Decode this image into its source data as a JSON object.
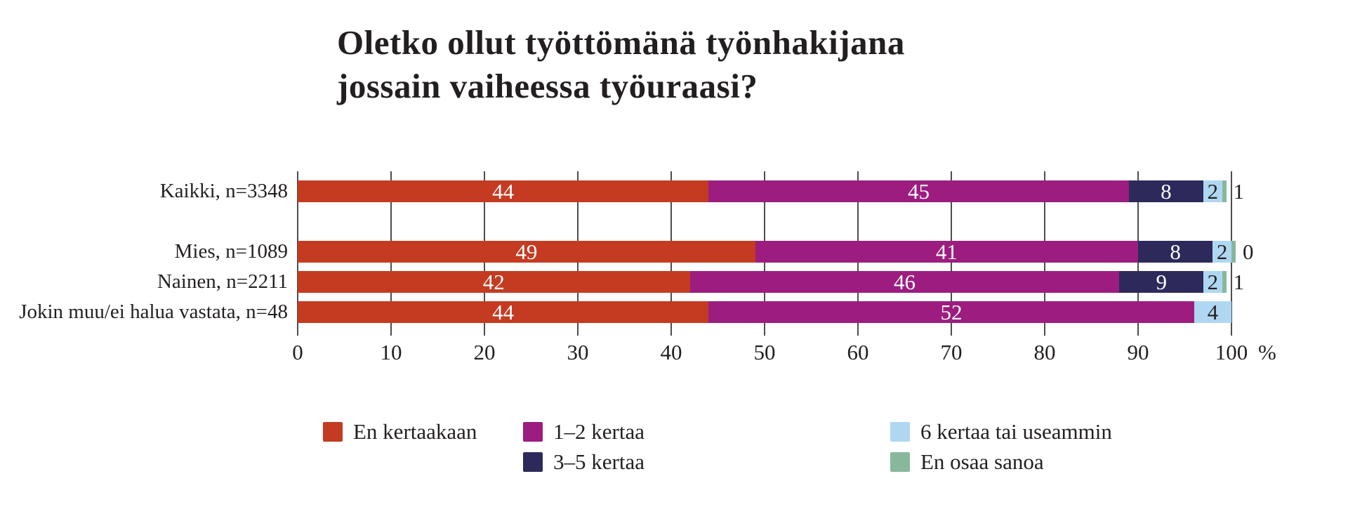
{
  "header": {
    "title_lines": [
      "Oletko ollut työttömänä työnhakijana",
      "jossain vaiheessa työuraasi?"
    ]
  },
  "chart_data": {
    "type": "bar",
    "orientation": "horizontal",
    "stacked": true,
    "title": "Oletko ollut työttömänä työnhakijana jossain vaiheessa työuraasi?",
    "categories": [
      "Kaikki, n=3348",
      "Mies, n=1089",
      "Nainen, n=2211",
      "Jokin muu/ei halua vastata, n=48"
    ],
    "series": [
      {
        "name": "En kertaakaan",
        "color": "#c43b21",
        "values": [
          44,
          49,
          42,
          44
        ]
      },
      {
        "name": "1–2 kertaa",
        "color": "#9c1d7f",
        "values": [
          45,
          41,
          46,
          52
        ]
      },
      {
        "name": "3–5 kertaa",
        "color": "#2d2a5b",
        "values": [
          8,
          8,
          9,
          0
        ]
      },
      {
        "name": "6 kertaa tai useammin",
        "color": "#afd7f2",
        "values": [
          2,
          2,
          2,
          4
        ]
      },
      {
        "name": "En osaa sanoa",
        "color": "#87b89b",
        "values": [
          1,
          0,
          1,
          0
        ]
      }
    ],
    "outside_labels": [
      "1",
      "0",
      "1",
      ""
    ],
    "green_sliver_rows": [
      true,
      true,
      true,
      false
    ],
    "xlim": [
      0,
      100
    ],
    "tick_labels": [
      "0",
      "10",
      "20",
      "30",
      "40",
      "50",
      "60",
      "70",
      "80",
      "90",
      "100"
    ],
    "unit_label": "%",
    "grid": true,
    "legend_position": "bottom"
  },
  "colors": {
    "background": "#ffffff",
    "text": "#231f20",
    "grid": "#4d4d4d",
    "value_label_light": "#ffffff",
    "value_label_dark": "#231f20"
  }
}
